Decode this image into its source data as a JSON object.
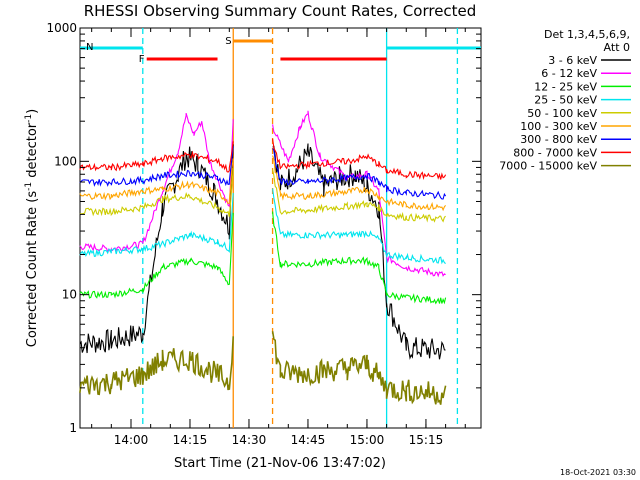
{
  "chart_data": {
    "type": "line",
    "title": "RHESSI Observing Summary Count Rates, Corrected",
    "xlabel": "Start Time (21-Nov-06 13:47:02)",
    "ylabel_main": "Corrected Count Rate (s",
    "ylabel_sup1": "-1",
    "ylabel_mid": " detector",
    "ylabel_sup2": "-1",
    "ylabel_end": ")",
    "yscale": "log",
    "ylim": [
      1,
      1000
    ],
    "xlim": [
      "13:47:02",
      "15:29:00"
    ],
    "xticks": [
      "14:00",
      "14:15",
      "14:30",
      "14:45",
      "15:00",
      "15:15"
    ],
    "yticks": [
      "1",
      "10",
      "100",
      "1000"
    ],
    "timestamp": "18-Oct-2021 03:30",
    "legend": {
      "placement": "right",
      "header1": "Det 1,3,4,5,6,9,",
      "header2": "Att 0"
    },
    "series": [
      {
        "name": "3 - 6 keV",
        "color": "#000000",
        "points": [
          [
            "13:47",
            4.3
          ],
          [
            "13:55",
            4.5
          ],
          [
            "14:03",
            5.2
          ],
          [
            "14:08",
            45
          ],
          [
            "14:12",
            80
          ],
          [
            "14:14",
            110
          ],
          [
            "14:17",
            95
          ],
          [
            "14:21",
            60
          ],
          [
            "14:25",
            32
          ],
          [
            "14:26",
            140
          ],
          [
            "14:36",
            150
          ],
          [
            "14:38",
            65
          ],
          [
            "14:42",
            85
          ],
          [
            "14:45",
            115
          ],
          [
            "14:49",
            65
          ],
          [
            "14:53",
            75
          ],
          [
            "14:57",
            80
          ],
          [
            "15:00",
            65
          ],
          [
            "15:03",
            45
          ],
          [
            "15:05",
            9
          ],
          [
            "15:10",
            4
          ],
          [
            "15:20",
            3.8
          ]
        ]
      },
      {
        "name": "6 - 12 keV",
        "color": "#ff00ff",
        "points": [
          [
            "13:47",
            23
          ],
          [
            "13:55",
            22
          ],
          [
            "14:03",
            24
          ],
          [
            "14:08",
            60
          ],
          [
            "14:12",
            120
          ],
          [
            "14:14",
            220
          ],
          [
            "14:16",
            160
          ],
          [
            "14:18",
            200
          ],
          [
            "14:20",
            100
          ],
          [
            "14:25",
            45
          ],
          [
            "14:26",
            200
          ],
          [
            "14:36",
            180
          ],
          [
            "14:40",
            100
          ],
          [
            "14:43",
            180
          ],
          [
            "14:45",
            230
          ],
          [
            "14:48",
            110
          ],
          [
            "14:55",
            75
          ],
          [
            "15:00",
            80
          ],
          [
            "15:03",
            60
          ],
          [
            "15:05",
            19
          ],
          [
            "15:10",
            16
          ],
          [
            "15:20",
            14
          ]
        ]
      },
      {
        "name": "12 - 25 keV",
        "color": "#00ee00",
        "points": [
          [
            "13:47",
            10
          ],
          [
            "13:55",
            10
          ],
          [
            "14:03",
            11
          ],
          [
            "14:08",
            16
          ],
          [
            "14:15",
            18
          ],
          [
            "14:22",
            16
          ],
          [
            "14:25",
            12
          ],
          [
            "14:26",
            40
          ],
          [
            "14:36",
            40
          ],
          [
            "14:38",
            17
          ],
          [
            "14:45",
            17
          ],
          [
            "14:55",
            18
          ],
          [
            "15:00",
            18
          ],
          [
            "15:03",
            16
          ],
          [
            "15:05",
            10
          ],
          [
            "15:10",
            9.5
          ],
          [
            "15:20",
            9
          ]
        ]
      },
      {
        "name": "25 - 50 keV",
        "color": "#00e5ee",
        "points": [
          [
            "13:47",
            20
          ],
          [
            "13:55",
            21
          ],
          [
            "14:03",
            22
          ],
          [
            "14:08",
            24
          ],
          [
            "14:15",
            28
          ],
          [
            "14:22",
            25
          ],
          [
            "14:25",
            22
          ],
          [
            "14:26",
            60
          ],
          [
            "14:36",
            60
          ],
          [
            "14:38",
            28
          ],
          [
            "14:45",
            28
          ],
          [
            "14:55",
            28
          ],
          [
            "15:00",
            29
          ],
          [
            "15:03",
            26
          ],
          [
            "15:05",
            20
          ],
          [
            "15:10",
            19
          ],
          [
            "15:20",
            18
          ]
        ]
      },
      {
        "name": "50 - 100 keV",
        "color": "#cccc00",
        "points": [
          [
            "13:47",
            42
          ],
          [
            "13:55",
            42
          ],
          [
            "14:03",
            45
          ],
          [
            "14:08",
            52
          ],
          [
            "14:15",
            55
          ],
          [
            "14:22",
            45
          ],
          [
            "14:25",
            40
          ],
          [
            "14:26",
            85
          ],
          [
            "14:36",
            85
          ],
          [
            "14:38",
            42
          ],
          [
            "14:45",
            43
          ],
          [
            "14:55",
            46
          ],
          [
            "15:00",
            48
          ],
          [
            "15:03",
            45
          ],
          [
            "15:05",
            40
          ],
          [
            "15:10",
            38
          ],
          [
            "15:20",
            37
          ]
        ]
      },
      {
        "name": "100 - 300 keV",
        "color": "#ffa500",
        "points": [
          [
            "13:47",
            55
          ],
          [
            "13:55",
            55
          ],
          [
            "14:03",
            60
          ],
          [
            "14:08",
            62
          ],
          [
            "14:15",
            67
          ],
          [
            "14:22",
            58
          ],
          [
            "14:25",
            50
          ],
          [
            "14:26",
            110
          ],
          [
            "14:36",
            110
          ],
          [
            "14:38",
            55
          ],
          [
            "14:45",
            55
          ],
          [
            "14:55",
            59
          ],
          [
            "15:00",
            62
          ],
          [
            "15:03",
            55
          ],
          [
            "15:05",
            50
          ],
          [
            "15:10",
            47
          ],
          [
            "15:20",
            45
          ]
        ]
      },
      {
        "name": "300 - 800 keV",
        "color": "#0000ff",
        "points": [
          [
            "13:47",
            70
          ],
          [
            "13:55",
            70
          ],
          [
            "14:03",
            72
          ],
          [
            "14:08",
            78
          ],
          [
            "14:15",
            82
          ],
          [
            "14:22",
            75
          ],
          [
            "14:25",
            68
          ],
          [
            "14:26",
            130
          ],
          [
            "14:36",
            130
          ],
          [
            "14:38",
            70
          ],
          [
            "14:45",
            70
          ],
          [
            "14:55",
            75
          ],
          [
            "15:00",
            78
          ],
          [
            "15:03",
            70
          ],
          [
            "15:05",
            62
          ],
          [
            "15:10",
            58
          ],
          [
            "15:20",
            55
          ]
        ]
      },
      {
        "name": "800 - 7000 keV",
        "color": "#ff0000",
        "points": [
          [
            "13:47",
            90
          ],
          [
            "13:55",
            90
          ],
          [
            "14:03",
            95
          ],
          [
            "14:08",
            105
          ],
          [
            "14:15",
            112
          ],
          [
            "14:22",
            100
          ],
          [
            "14:25",
            85
          ],
          [
            "14:26",
            140
          ],
          [
            "14:36",
            140
          ],
          [
            "14:38",
            90
          ],
          [
            "14:45",
            95
          ],
          [
            "14:55",
            100
          ],
          [
            "15:00",
            108
          ],
          [
            "15:03",
            95
          ],
          [
            "15:05",
            85
          ],
          [
            "15:10",
            80
          ],
          [
            "15:20",
            76
          ]
        ]
      },
      {
        "name": "7000 - 15000 keV",
        "color": "#808000",
        "points": [
          [
            "13:47",
            2.1
          ],
          [
            "13:55",
            2.2
          ],
          [
            "14:03",
            2.5
          ],
          [
            "14:08",
            3.2
          ],
          [
            "14:15",
            3.3
          ],
          [
            "14:22",
            2.5
          ],
          [
            "14:25",
            2.2
          ],
          [
            "14:26",
            5
          ],
          [
            "14:36",
            5
          ],
          [
            "14:38",
            2.6
          ],
          [
            "14:45",
            2.6
          ],
          [
            "14:55",
            2.8
          ],
          [
            "15:00",
            3
          ],
          [
            "15:03",
            2.4
          ],
          [
            "15:05",
            2.0
          ],
          [
            "15:10",
            1.9
          ],
          [
            "15:20",
            1.8
          ]
        ]
      }
    ],
    "flags": [
      {
        "label": "N",
        "color": "#00e5ee",
        "start": "13:47",
        "end": "14:03",
        "level": "top"
      },
      {
        "label": "",
        "color": "#00e5ee",
        "start": "15:05",
        "end": "15:29",
        "level": "top"
      },
      {
        "label": "F",
        "color": "#ff0000",
        "start": "14:04",
        "end": "14:22",
        "level": "middle"
      },
      {
        "label": "",
        "color": "#ff0000",
        "start": "14:38",
        "end": "15:05",
        "level": "middle"
      },
      {
        "label": "S",
        "color": "#ff8c00",
        "start": "14:26",
        "end": "14:36",
        "level": "high"
      }
    ],
    "vlines": [
      {
        "time": "14:03",
        "color": "#00e5ee",
        "style": "dashed"
      },
      {
        "time": "14:26",
        "color": "#ff8c00",
        "style": "solid"
      },
      {
        "time": "14:36",
        "color": "#ff8c00",
        "style": "dashed"
      },
      {
        "time": "15:05",
        "color": "#00e5ee",
        "style": "solid"
      },
      {
        "time": "15:23",
        "color": "#00e5ee",
        "style": "dashed"
      }
    ]
  }
}
